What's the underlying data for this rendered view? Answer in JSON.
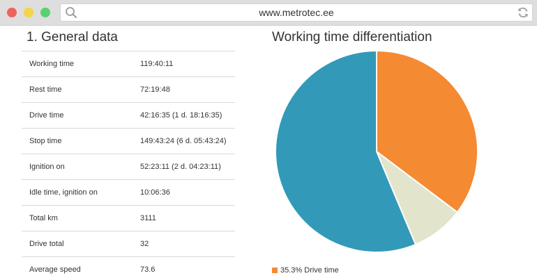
{
  "browser": {
    "url": "www.metrotec.ee",
    "colors": {
      "close": "#f0635d",
      "minimize": "#f4d548",
      "maximize": "#58d26e"
    }
  },
  "general": {
    "title": "1. General data",
    "rows": [
      {
        "label": "Working time",
        "value": "119:40:11"
      },
      {
        "label": "Rest time",
        "value": "72:19:48"
      },
      {
        "label": "Drive time",
        "value": "42:16:35 (1 d. 18:16:35)"
      },
      {
        "label": "Stop time",
        "value": "149:43:24 (6 d. 05:43:24)"
      },
      {
        "label": "Ignition on",
        "value": "52:23:11 (2 d. 04:23:11)"
      },
      {
        "label": "Idle time, ignition on",
        "value": "10:06:36"
      },
      {
        "label": "Total km",
        "value": "3111"
      },
      {
        "label": "Drive total",
        "value": "32"
      },
      {
        "label": "Average speed",
        "value": "73.6"
      }
    ]
  },
  "chart_data": {
    "type": "pie",
    "title": "Working time differentiation",
    "slices": [
      {
        "value": 35.3,
        "color": "#f48a32"
      },
      {
        "value": 8.4,
        "color": "#e2e4cc"
      },
      {
        "value": 56.3,
        "color": "#3399b8"
      }
    ],
    "legend": [
      {
        "label": "35.3% Drive time",
        "color": "#f48a32"
      }
    ]
  }
}
